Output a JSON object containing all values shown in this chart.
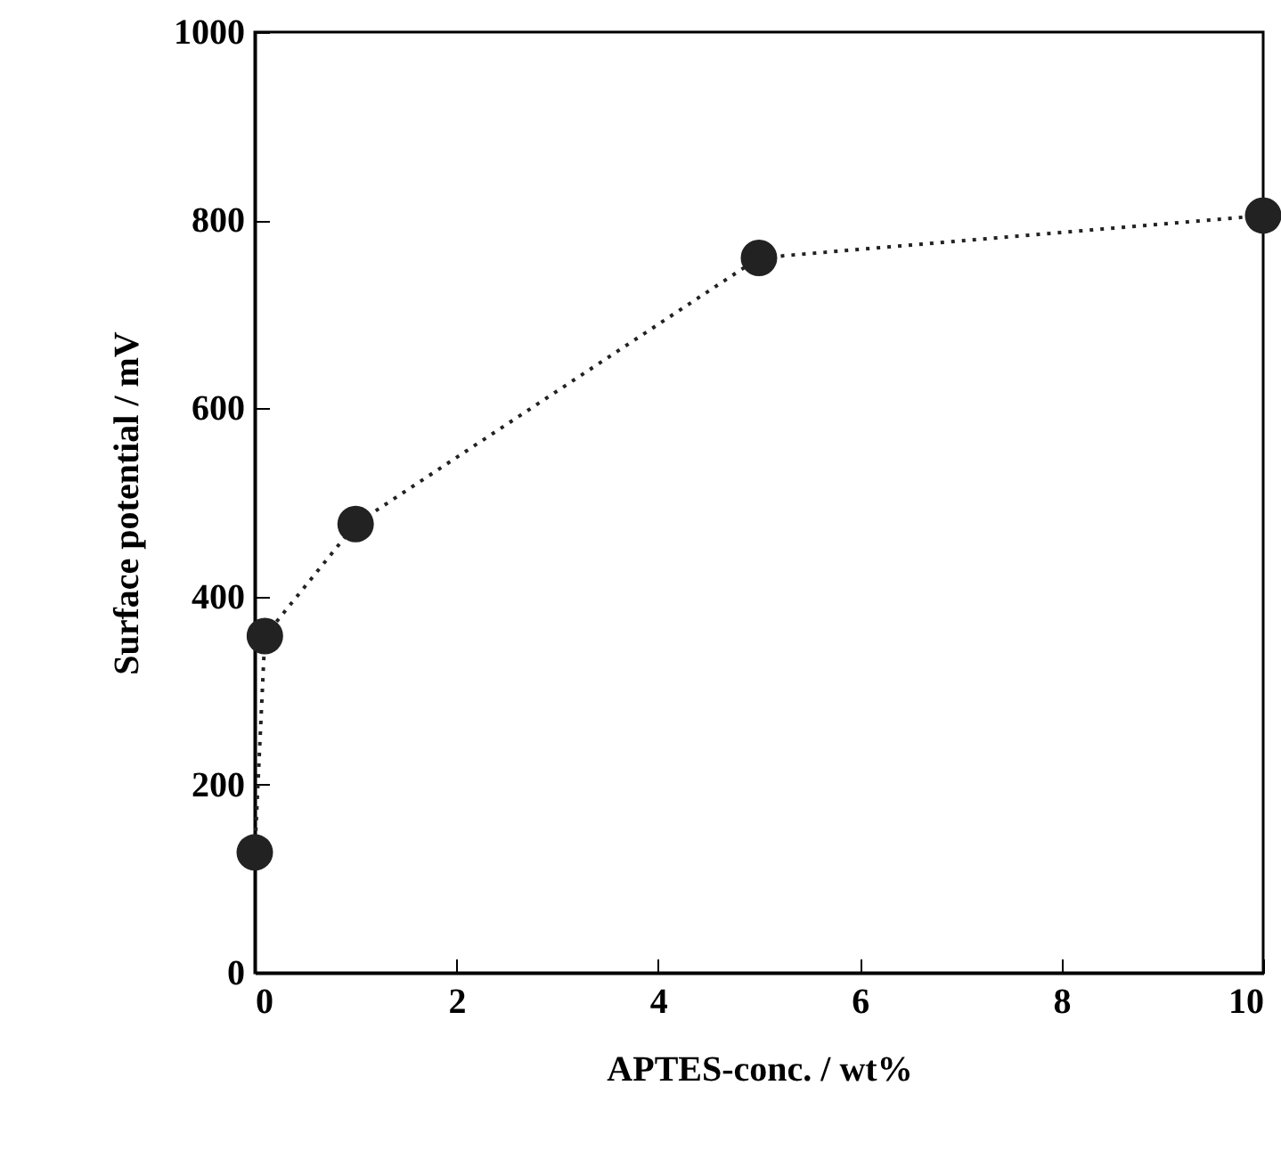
{
  "chart_data": {
    "type": "line",
    "xlabel": "APTES-conc. / wt%",
    "ylabel": "Surface potential / mV",
    "x": [
      0,
      0.1,
      1,
      5,
      10
    ],
    "series": [
      {
        "color": "#222222",
        "values": [
          128,
          358,
          477,
          760,
          805
        ]
      }
    ],
    "xlim": [
      0,
      10
    ],
    "xticks": [
      0,
      2,
      4,
      6,
      8,
      10
    ],
    "ylim": [
      0,
      1000
    ],
    "yticks": [
      0,
      200,
      400,
      600,
      800,
      1000
    ],
    "grid": false,
    "marker": "circle",
    "line_style": "dotted"
  }
}
